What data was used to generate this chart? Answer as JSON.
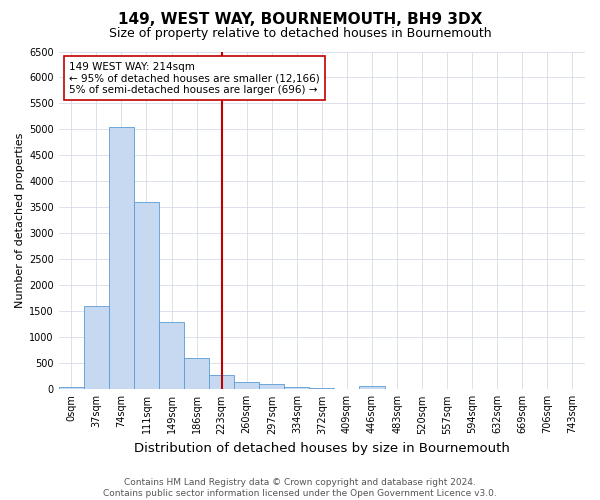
{
  "title": "149, WEST WAY, BOURNEMOUTH, BH9 3DX",
  "subtitle": "Size of property relative to detached houses in Bournemouth",
  "xlabel": "Distribution of detached houses by size in Bournemouth",
  "ylabel": "Number of detached properties",
  "bar_categories": [
    "0sqm",
    "37sqm",
    "74sqm",
    "111sqm",
    "149sqm",
    "186sqm",
    "223sqm",
    "260sqm",
    "297sqm",
    "334sqm",
    "372sqm",
    "409sqm",
    "446sqm",
    "483sqm",
    "520sqm",
    "557sqm",
    "594sqm",
    "632sqm",
    "669sqm",
    "706sqm",
    "743sqm"
  ],
  "bar_values": [
    50,
    1600,
    5050,
    3600,
    1300,
    600,
    280,
    150,
    100,
    50,
    30,
    15,
    60,
    0,
    0,
    0,
    0,
    0,
    0,
    0,
    0
  ],
  "bar_color": "#c6d9f0",
  "bar_edgecolor": "#5b9bd5",
  "vline_index": 6,
  "vline_color": "#c00000",
  "annotation_text": "149 WEST WAY: 214sqm\n← 95% of detached houses are smaller (12,166)\n5% of semi-detached houses are larger (696) →",
  "annotation_box_color": "#ffffff",
  "annotation_box_edgecolor": "#c00000",
  "ylim": [
    0,
    6500
  ],
  "yticks": [
    0,
    500,
    1000,
    1500,
    2000,
    2500,
    3000,
    3500,
    4000,
    4500,
    5000,
    5500,
    6000,
    6500
  ],
  "footer1": "Contains HM Land Registry data © Crown copyright and database right 2024.",
  "footer2": "Contains public sector information licensed under the Open Government Licence v3.0.",
  "bg_color": "#ffffff",
  "grid_color": "#cdd5e5",
  "title_fontsize": 11,
  "subtitle_fontsize": 9,
  "xlabel_fontsize": 9.5,
  "ylabel_fontsize": 8,
  "tick_fontsize": 7,
  "annotation_fontsize": 7.5,
  "footer_fontsize": 6.5
}
